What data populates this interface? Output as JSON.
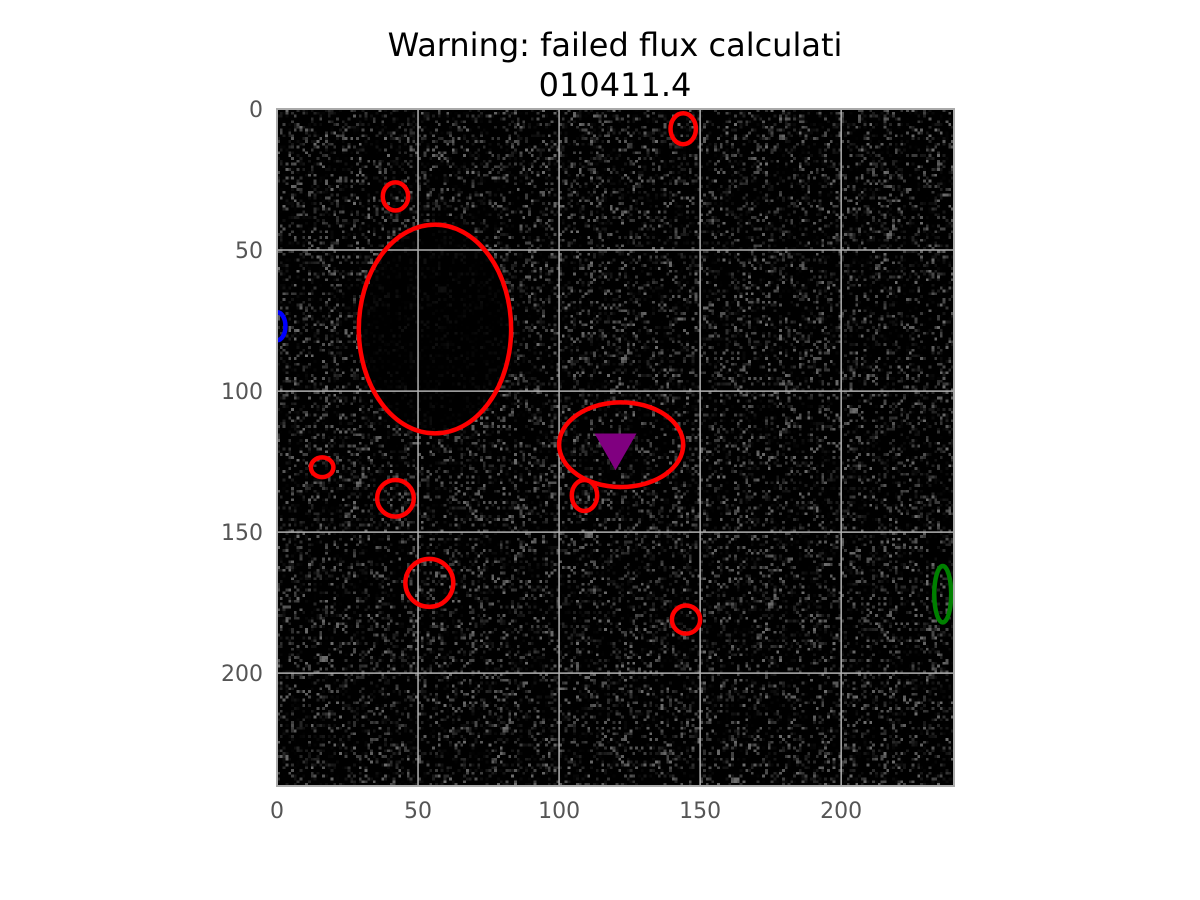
{
  "chart_data": {
    "type": "scatter",
    "title_lines": [
      "Warning: failed flux calculati",
      "010411.4"
    ],
    "xlabel": "",
    "ylabel": "",
    "xlim": [
      0,
      240
    ],
    "ylim": [
      240,
      0
    ],
    "y_inverted": true,
    "xticks": [
      0,
      50,
      100,
      150,
      200
    ],
    "yticks": [
      0,
      50,
      100,
      150,
      200
    ],
    "xtick_labels": [
      "0",
      "50",
      "100",
      "150",
      "200"
    ],
    "ytick_labels": [
      "0",
      "50",
      "100",
      "150",
      "200"
    ],
    "grid": true,
    "background": "noisy dark image",
    "colors": {
      "detection": "#ff0000",
      "blue_source": "#0000ff",
      "green_source": "#008000",
      "target_marker": "#800080",
      "grid": "#b0b0b0",
      "axes_edge": "#aaaaaa"
    },
    "ellipses": [
      {
        "color": "detection",
        "cx": 144,
        "cy": 7,
        "w": 9,
        "h": 11
      },
      {
        "color": "detection",
        "cx": 42,
        "cy": 31,
        "w": 9,
        "h": 10
      },
      {
        "color": "detection",
        "cx": 56,
        "cy": 78,
        "w": 54,
        "h": 74
      },
      {
        "color": "detection",
        "cx": 122,
        "cy": 119,
        "w": 44,
        "h": 30
      },
      {
        "color": "detection",
        "cx": 16,
        "cy": 127,
        "w": 8,
        "h": 7
      },
      {
        "color": "detection",
        "cx": 42,
        "cy": 138,
        "w": 13,
        "h": 13
      },
      {
        "color": "detection",
        "cx": 109,
        "cy": 137,
        "w": 9,
        "h": 11
      },
      {
        "color": "detection",
        "cx": 54,
        "cy": 168,
        "w": 17,
        "h": 17
      },
      {
        "color": "detection",
        "cx": 145,
        "cy": 181,
        "w": 10,
        "h": 10
      },
      {
        "color": "blue_source",
        "cx": 0,
        "cy": 77,
        "w": 6,
        "h": 10
      },
      {
        "color": "green_source",
        "cx": 236,
        "cy": 172,
        "w": 6,
        "h": 20
      }
    ],
    "markers": [
      {
        "shape": "triangle-down",
        "color": "target_marker",
        "x": 120,
        "y": 121
      }
    ]
  }
}
